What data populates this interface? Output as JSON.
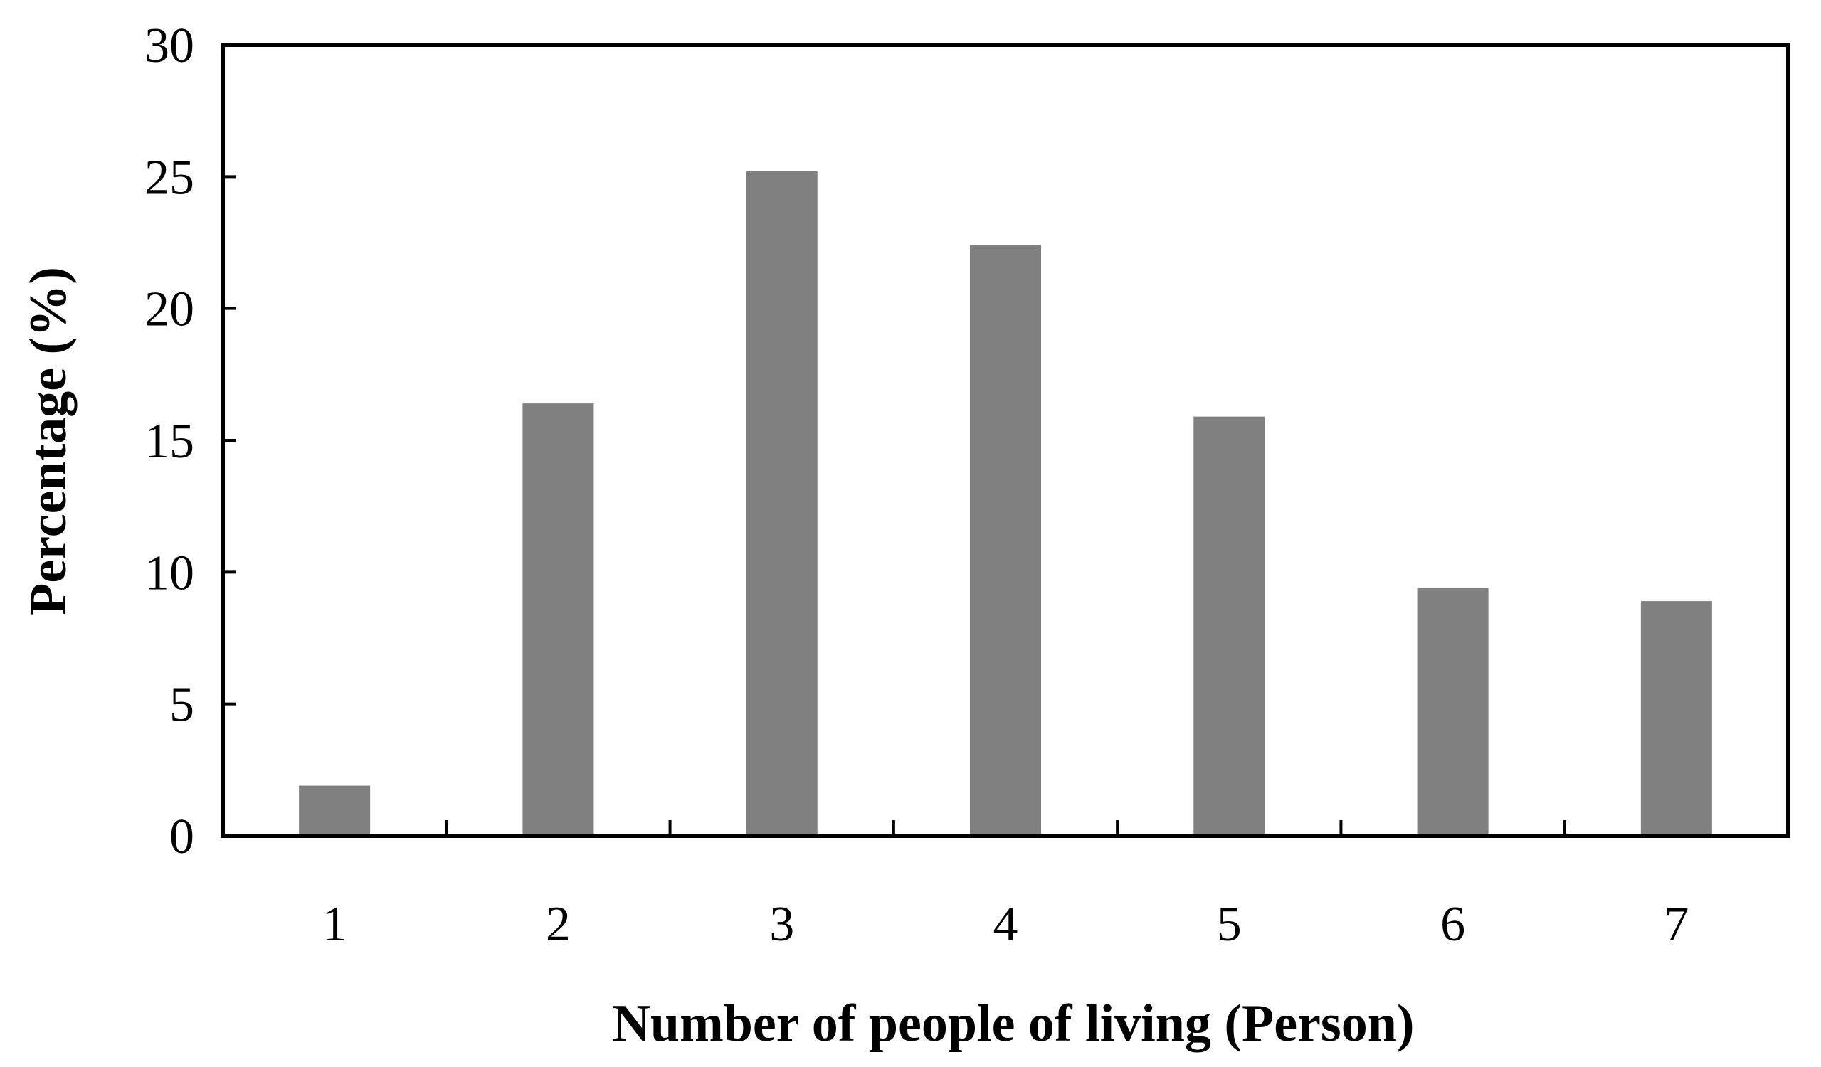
{
  "chart_data": {
    "type": "bar",
    "title": "",
    "xlabel": "Number of people of living (Person)",
    "ylabel": "Percentage (%)",
    "categories": [
      "1",
      "2",
      "3",
      "4",
      "5",
      "6",
      "7"
    ],
    "values": [
      1.9,
      16.4,
      25.2,
      22.4,
      15.9,
      9.4,
      8.9
    ],
    "ylim": [
      0,
      30
    ],
    "yticks": [
      0,
      5,
      10,
      15,
      20,
      25,
      30
    ],
    "bar_color": "#808080",
    "axis_color": "#000000",
    "grid": false,
    "legend": "none"
  }
}
